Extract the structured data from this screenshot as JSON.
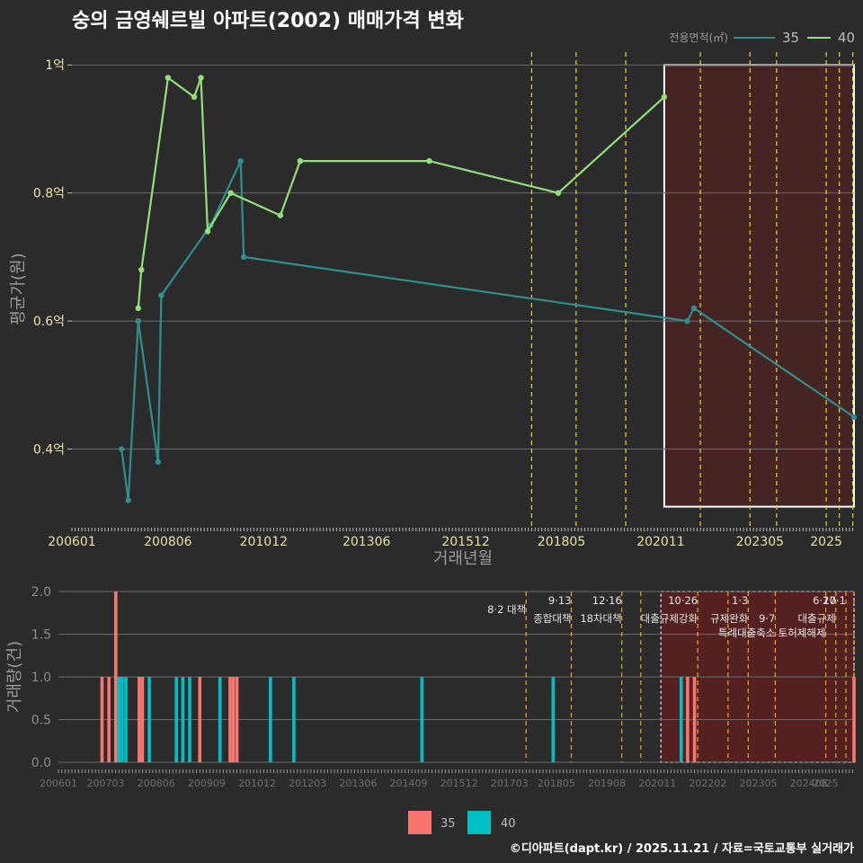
{
  "colors": {
    "background": "#2b2b2c",
    "grid": "#6a6a6a",
    "series_35_line": "#2e8f8e",
    "series_40_line": "#93e07a",
    "bar_35": "#f8766d",
    "bar_40": "#00bfc4",
    "policy_line": "#e8d62e",
    "policy_line_bottom": "#e8a62e",
    "highlight_fill": "#5c1f1f",
    "tick_text": "#e8e3a8",
    "axis_title": "#9a9a9a"
  },
  "chart_data": [
    {
      "type": "line",
      "title": "숭의 금영쉐르빌 아파트(2002) 매매가격 변화",
      "xlabel": "거래년월",
      "ylabel": "평균가(원)",
      "ylim": [
        0.28,
        1.02
      ],
      "y_ticks": [
        {
          "value": 0.4,
          "label": "0.4억"
        },
        {
          "value": 0.6,
          "label": "0.6억"
        },
        {
          "value": 0.8,
          "label": "0.8억"
        },
        {
          "value": 1.0,
          "label": "1억"
        }
      ],
      "x_ticks": [
        {
          "value": 2006.0,
          "label": "200601"
        },
        {
          "value": 2008.42,
          "label": "200806"
        },
        {
          "value": 2010.83,
          "label": "201012"
        },
        {
          "value": 2013.42,
          "label": "201306"
        },
        {
          "value": 2015.92,
          "label": "201512"
        },
        {
          "value": 2018.33,
          "label": "201805"
        },
        {
          "value": 2020.83,
          "label": "202011"
        },
        {
          "value": 2023.33,
          "label": "202305"
        },
        {
          "value": 2025.0,
          "label": "2025"
        }
      ],
      "xlim": [
        2006.0,
        2025.7
      ],
      "legend": {
        "title": "전용면적(㎡)",
        "position": "top-right",
        "entries": [
          "35",
          "40"
        ]
      },
      "series": [
        {
          "name": "35",
          "points": [
            [
              2007.25,
              0.4
            ],
            [
              2007.42,
              0.32
            ],
            [
              2007.67,
              0.6
            ],
            [
              2008.17,
              0.38
            ],
            [
              2008.25,
              0.64
            ],
            [
              2009.5,
              0.75
            ],
            [
              2010.25,
              0.85
            ],
            [
              2010.33,
              0.7
            ],
            [
              2021.5,
              0.6
            ],
            [
              2021.67,
              0.62
            ],
            [
              2025.7,
              0.45
            ]
          ]
        },
        {
          "name": "40",
          "points": [
            [
              2007.67,
              0.62
            ],
            [
              2007.75,
              0.68
            ],
            [
              2008.42,
              0.98
            ],
            [
              2009.08,
              0.95
            ],
            [
              2009.25,
              0.98
            ],
            [
              2009.42,
              0.74
            ],
            [
              2010.0,
              0.8
            ],
            [
              2011.25,
              0.765
            ],
            [
              2011.75,
              0.85
            ],
            [
              2015.0,
              0.85
            ],
            [
              2018.25,
              0.8
            ],
            [
              2020.92,
              0.95
            ]
          ]
        }
      ],
      "policy_lines": [
        2017.58,
        2018.7,
        2019.95,
        2021.83,
        2023.08,
        2023.75,
        2025.0,
        2025.33,
        2025.67
      ],
      "highlight_range": [
        2020.92,
        2025.7
      ]
    },
    {
      "type": "bar",
      "ylabel": "거래량(건)",
      "ylim": [
        0,
        2.0
      ],
      "y_ticks": [
        {
          "value": 0.0,
          "label": "0.0"
        },
        {
          "value": 0.5,
          "label": "0.5"
        },
        {
          "value": 1.0,
          "label": "1.0"
        },
        {
          "value": 1.5,
          "label": "1.5"
        },
        {
          "value": 2.0,
          "label": "2.0"
        }
      ],
      "x_ticks": [
        {
          "value": 2006.0,
          "label": "200601"
        },
        {
          "value": 2007.17,
          "label": "200703"
        },
        {
          "value": 2008.42,
          "label": "200806"
        },
        {
          "value": 2009.67,
          "label": "200909"
        },
        {
          "value": 2010.92,
          "label": "201012"
        },
        {
          "value": 2012.17,
          "label": "201203"
        },
        {
          "value": 2013.42,
          "label": "201306"
        },
        {
          "value": 2014.67,
          "label": "201409"
        },
        {
          "value": 2015.92,
          "label": "201512"
        },
        {
          "value": 2017.17,
          "label": "201703"
        },
        {
          "value": 2018.33,
          "label": "201805"
        },
        {
          "value": 2019.58,
          "label": "201908"
        },
        {
          "value": 2020.83,
          "label": "202011"
        },
        {
          "value": 2022.08,
          "label": "202202"
        },
        {
          "value": 2023.33,
          "label": "202305"
        },
        {
          "value": 2024.58,
          "label": "202408"
        },
        {
          "value": 2025.0,
          "label": "2025"
        }
      ],
      "xlim": [
        2006.0,
        2025.7
      ],
      "legend": {
        "position": "bottom",
        "entries": [
          "35",
          "40"
        ]
      },
      "bars": [
        {
          "x": 2007.42,
          "series": "35",
          "value": 2
        },
        {
          "x": 2007.25,
          "series": "35",
          "value": 1
        },
        {
          "x": 2007.08,
          "series": "35",
          "value": 1
        },
        {
          "x": 2007.5,
          "series": "40",
          "value": 1
        },
        {
          "x": 2007.58,
          "series": "40",
          "value": 1
        },
        {
          "x": 2007.67,
          "series": "40",
          "value": 1
        },
        {
          "x": 2008.0,
          "series": "35",
          "value": 1
        },
        {
          "x": 2008.08,
          "series": "35",
          "value": 1
        },
        {
          "x": 2008.25,
          "series": "40",
          "value": 1
        },
        {
          "x": 2008.92,
          "series": "40",
          "value": 1
        },
        {
          "x": 2009.08,
          "series": "40",
          "value": 1
        },
        {
          "x": 2009.25,
          "series": "40",
          "value": 1
        },
        {
          "x": 2009.5,
          "series": "35",
          "value": 1
        },
        {
          "x": 2010.0,
          "series": "40",
          "value": 1
        },
        {
          "x": 2010.25,
          "series": "35",
          "value": 1
        },
        {
          "x": 2010.33,
          "series": "35",
          "value": 1
        },
        {
          "x": 2010.42,
          "series": "35",
          "value": 1
        },
        {
          "x": 2011.25,
          "series": "40",
          "value": 1
        },
        {
          "x": 2011.83,
          "series": "40",
          "value": 1
        },
        {
          "x": 2015.0,
          "series": "40",
          "value": 1
        },
        {
          "x": 2018.25,
          "series": "40",
          "value": 1
        },
        {
          "x": 2021.42,
          "series": "40",
          "value": 1
        },
        {
          "x": 2021.58,
          "series": "35",
          "value": 1
        },
        {
          "x": 2021.75,
          "series": "35",
          "value": 1
        },
        {
          "x": 2025.7,
          "series": "35",
          "value": 1
        }
      ],
      "policy_lines": [
        {
          "x": 2017.58,
          "label": "8·2 대책",
          "row": 2
        },
        {
          "x": 2018.7,
          "label": "9·13",
          "row": 1
        },
        {
          "x": 2018.7,
          "label": "종합대책",
          "row": 3
        },
        {
          "x": 2019.95,
          "label": "12·16",
          "row": 1
        },
        {
          "x": 2019.95,
          "label": "18차대책",
          "row": 3
        },
        {
          "x": 2020.42,
          "label": "",
          "row": 0
        },
        {
          "x": 2021.83,
          "label": "10·26",
          "row": 1
        },
        {
          "x": 2021.83,
          "label": "대출규제강화",
          "row": 3
        },
        {
          "x": 2022.58,
          "label": "",
          "row": 0
        },
        {
          "x": 2023.08,
          "label": "1·3",
          "row": 1
        },
        {
          "x": 2023.08,
          "label": "규제완화",
          "row": 3
        },
        {
          "x": 2023.75,
          "label": "9·7",
          "row": 3
        },
        {
          "x": 2023.75,
          "label": "특례대출축소",
          "row": 4
        },
        {
          "x": 2025.0,
          "label": "토허제해제",
          "row": 4
        },
        {
          "x": 2025.25,
          "label": "6·27",
          "row": 1
        },
        {
          "x": 2025.25,
          "label": "대출규제",
          "row": 3
        },
        {
          "x": 2025.5,
          "label": "10·1",
          "row": 1
        },
        {
          "x": 2025.7,
          "label": "",
          "row": 0
        }
      ],
      "highlight_range": [
        2020.92,
        2025.7
      ]
    }
  ],
  "footer": {
    "source": "©디아파트(dapt.kr) / 2025.11.21 / 자료=국토교통부 실거래가"
  }
}
